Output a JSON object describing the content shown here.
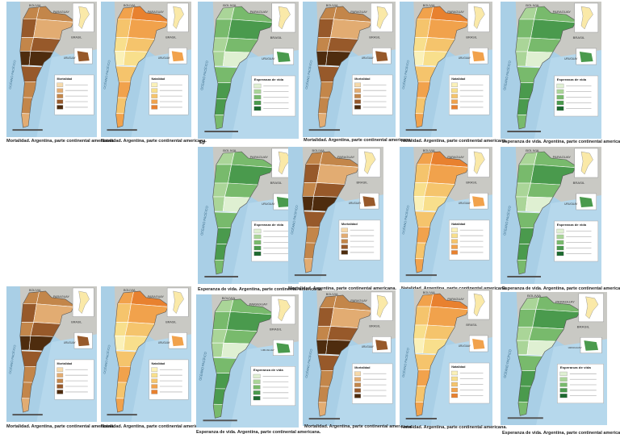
{
  "map_labels": {
    "bolivia": "BOLIVIA",
    "paraguay": "PARAGUAY",
    "brasil": "BRASIL",
    "uruguay": "URUGUAY",
    "ocean": "OCÉANO PACÍFICO"
  },
  "legends": {
    "mortalidad": "Mortalidad",
    "natalidad": "Natalidad",
    "esperanza": "Esperanza de vida"
  },
  "tiles": [
    {
      "scheme": "mortalidad",
      "caption": "Mortalidad. Argentina, parte continental americana."
    },
    {
      "scheme": "natalidad",
      "caption": "Natalidad. Argentina, parte continental americana."
    },
    {
      "scheme": "esperanza",
      "caption": "Ep"
    },
    {
      "scheme": "mortalidad",
      "caption": "Mortalidad. Argentina, parte continental americana."
    },
    {
      "scheme": "natalidad",
      "caption": "Natalidad. Argentina, parte continental americana."
    },
    {
      "scheme": "esperanza",
      "caption": "Esperanza de vida. Argentina, parte continental americana."
    },
    {
      "scheme": "esperanza",
      "caption": "Esperanza de vida. Argentina, parte continental americana."
    },
    {
      "scheme": "mortalidad",
      "caption": "Mortalidad. Argentina, parte continental americana."
    },
    {
      "scheme": "natalidad",
      "caption": "Natalidad. Argentina, parte continental americana."
    },
    {
      "scheme": "esperanza",
      "caption": "Esperanza de vida. Argentina, parte continental americana."
    },
    {
      "scheme": "mortalidad",
      "caption": "Mortalidad. Argentina, parte continental americana."
    },
    {
      "scheme": "natalidad",
      "caption": "Natalidad. Argentina, parte continental americana."
    },
    {
      "scheme": "esperanza",
      "caption": "Esperanza de vida. Argentina, parte continental americana."
    },
    {
      "scheme": "mortalidad",
      "caption": "Mortalidad. Argentina, parte continental americana."
    },
    {
      "scheme": "natalidad",
      "caption": "Natalidad. Argentina, parte continental americana."
    },
    {
      "scheme": "esperanza",
      "caption": "Esperanza de vida. Argentina, parte continental americana."
    }
  ]
}
